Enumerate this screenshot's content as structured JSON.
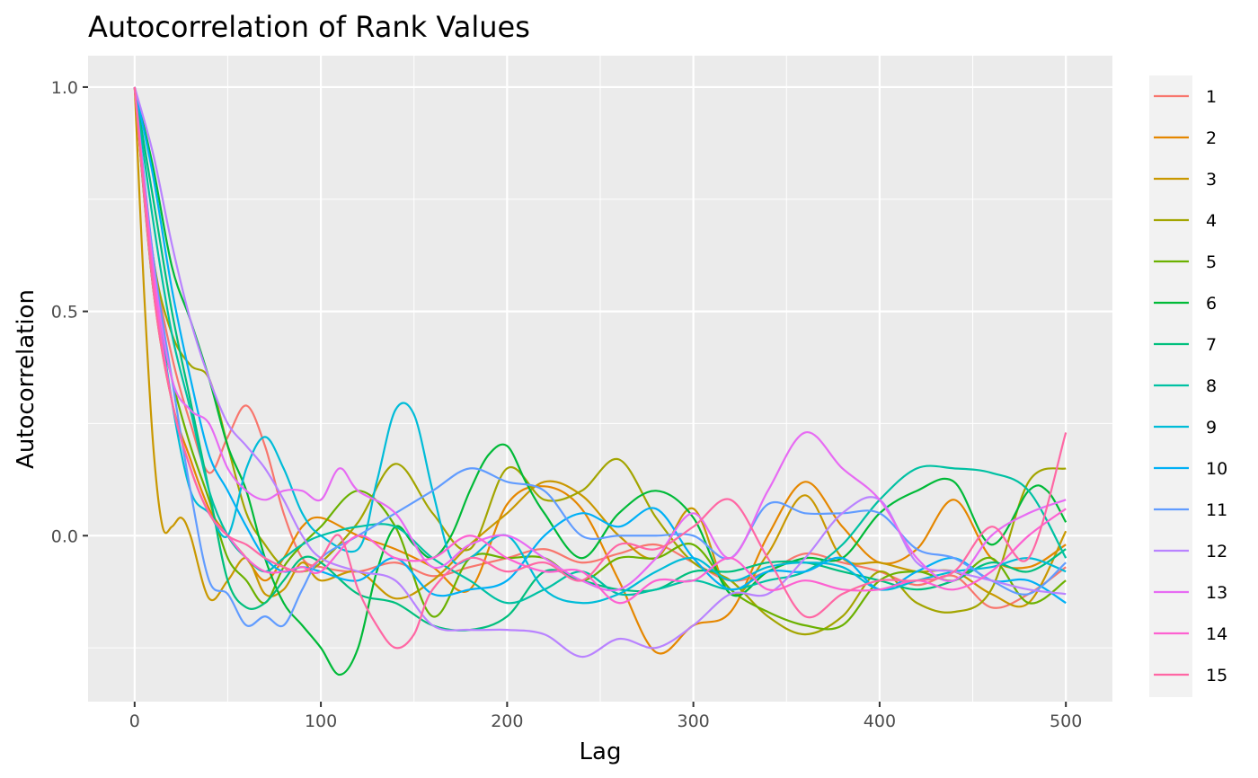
{
  "chart_data": {
    "type": "line",
    "title": "Autocorrelation of Rank Values",
    "xlabel": "Lag",
    "ylabel": "Autocorrelation",
    "xlim": [
      -25,
      525
    ],
    "ylim": [
      -0.37,
      1.07
    ],
    "xticks": [
      0,
      100,
      200,
      300,
      400,
      500
    ],
    "xtick_labels": [
      "0",
      "100",
      "200",
      "300",
      "400",
      "500"
    ],
    "yticks": [
      0.0,
      0.5,
      1.0
    ],
    "ytick_labels": [
      "0.0",
      "0.5",
      "1.0"
    ],
    "grid": true,
    "legend_position": "right",
    "series": [
      {
        "name": "1",
        "color": "#F8766D",
        "x": [
          0,
          10,
          20,
          30,
          40,
          50,
          60,
          70,
          80,
          90,
          100,
          120,
          140,
          160,
          180,
          200,
          220,
          240,
          260,
          280,
          300,
          320,
          340,
          360,
          380,
          400,
          420,
          440,
          460,
          480,
          500
        ],
        "values": [
          1.0,
          0.62,
          0.4,
          0.25,
          0.14,
          0.22,
          0.29,
          0.2,
          0.05,
          -0.05,
          -0.07,
          -0.08,
          -0.06,
          -0.09,
          -0.07,
          -0.05,
          -0.03,
          -0.06,
          -0.04,
          -0.02,
          -0.06,
          -0.1,
          -0.08,
          -0.04,
          -0.06,
          -0.08,
          -0.11,
          -0.09,
          -0.16,
          -0.13,
          -0.07
        ]
      },
      {
        "name": "2",
        "color": "#E58700",
        "x": [
          0,
          10,
          20,
          30,
          40,
          50,
          60,
          70,
          80,
          90,
          100,
          120,
          140,
          160,
          180,
          200,
          220,
          240,
          260,
          280,
          300,
          320,
          340,
          360,
          380,
          400,
          420,
          440,
          460,
          480,
          500
        ],
        "values": [
          1.0,
          0.55,
          0.3,
          0.17,
          0.06,
          0.0,
          -0.05,
          -0.1,
          -0.05,
          0.02,
          0.04,
          0.0,
          -0.03,
          -0.07,
          -0.12,
          0.07,
          0.11,
          0.06,
          -0.1,
          -0.26,
          -0.2,
          -0.17,
          0.0,
          0.12,
          0.02,
          -0.06,
          -0.03,
          0.08,
          -0.05,
          -0.07,
          -0.02
        ]
      },
      {
        "name": "3",
        "color": "#C99800",
        "x": [
          0,
          5,
          10,
          15,
          20,
          25,
          30,
          40,
          50,
          60,
          70,
          80,
          90,
          100,
          120,
          140,
          160,
          180,
          200,
          220,
          240,
          260,
          280,
          300,
          320,
          340,
          360,
          380,
          400,
          420,
          440,
          460,
          480,
          500
        ],
        "values": [
          1.0,
          0.55,
          0.2,
          0.02,
          0.02,
          0.04,
          0.0,
          -0.14,
          -0.1,
          -0.05,
          -0.13,
          -0.12,
          -0.06,
          -0.1,
          -0.08,
          -0.14,
          -0.1,
          -0.02,
          0.05,
          0.12,
          0.09,
          0.0,
          -0.05,
          0.06,
          -0.13,
          -0.04,
          0.09,
          -0.05,
          -0.06,
          -0.08,
          -0.08,
          -0.13,
          -0.15,
          0.01
        ]
      },
      {
        "name": "4",
        "color": "#A3A500",
        "x": [
          0,
          10,
          20,
          30,
          40,
          50,
          60,
          70,
          80,
          90,
          100,
          120,
          140,
          160,
          180,
          200,
          220,
          240,
          260,
          280,
          300,
          320,
          340,
          360,
          380,
          400,
          420,
          440,
          460,
          480,
          500
        ],
        "values": [
          1.0,
          0.62,
          0.45,
          0.38,
          0.35,
          0.2,
          0.05,
          -0.02,
          -0.07,
          -0.08,
          -0.06,
          0.03,
          0.16,
          0.05,
          -0.03,
          0.15,
          0.08,
          0.1,
          0.17,
          0.04,
          -0.06,
          -0.1,
          -0.18,
          -0.22,
          -0.18,
          -0.08,
          -0.15,
          -0.17,
          -0.12,
          0.12,
          0.15
        ]
      },
      {
        "name": "5",
        "color": "#6BB100",
        "x": [
          0,
          10,
          20,
          30,
          40,
          50,
          60,
          70,
          80,
          90,
          100,
          120,
          140,
          160,
          180,
          200,
          220,
          240,
          260,
          280,
          300,
          320,
          340,
          360,
          380,
          400,
          420,
          440,
          460,
          480,
          500
        ],
        "values": [
          1.0,
          0.55,
          0.35,
          0.2,
          0.08,
          -0.05,
          -0.1,
          -0.15,
          -0.07,
          -0.02,
          0.02,
          0.1,
          0.02,
          -0.18,
          -0.05,
          -0.05,
          -0.05,
          -0.1,
          -0.05,
          -0.05,
          -0.02,
          -0.12,
          -0.17,
          -0.2,
          -0.2,
          -0.1,
          -0.08,
          -0.1,
          -0.05,
          -0.15,
          -0.1
        ]
      },
      {
        "name": "6",
        "color": "#00BA38",
        "x": [
          0,
          10,
          20,
          30,
          40,
          50,
          60,
          70,
          80,
          90,
          100,
          110,
          120,
          130,
          140,
          150,
          160,
          170,
          180,
          190,
          200,
          210,
          220,
          240,
          260,
          280,
          300,
          320,
          340,
          360,
          380,
          400,
          420,
          440,
          460,
          480,
          490,
          500
        ],
        "values": [
          1.0,
          0.82,
          0.6,
          0.48,
          0.35,
          0.2,
          0.1,
          -0.05,
          -0.15,
          -0.2,
          -0.25,
          -0.31,
          -0.25,
          -0.08,
          0.02,
          -0.02,
          -0.05,
          0.0,
          0.1,
          0.18,
          0.2,
          0.12,
          0.05,
          -0.05,
          0.05,
          0.1,
          0.04,
          -0.13,
          -0.08,
          -0.05,
          -0.05,
          0.05,
          0.1,
          0.12,
          -0.02,
          0.1,
          0.1,
          0.03
        ]
      },
      {
        "name": "7",
        "color": "#00BF7D",
        "x": [
          0,
          10,
          20,
          30,
          40,
          50,
          60,
          70,
          80,
          90,
          100,
          120,
          140,
          160,
          180,
          200,
          220,
          240,
          260,
          280,
          300,
          320,
          340,
          360,
          380,
          400,
          420,
          440,
          460,
          480,
          500
        ],
        "values": [
          1.0,
          0.75,
          0.5,
          0.3,
          0.1,
          -0.1,
          -0.16,
          -0.15,
          -0.1,
          -0.05,
          -0.06,
          -0.13,
          -0.15,
          -0.2,
          -0.21,
          -0.18,
          -0.08,
          -0.1,
          -0.12,
          -0.12,
          -0.08,
          -0.08,
          -0.06,
          -0.06,
          -0.08,
          -0.1,
          -0.12,
          -0.1,
          -0.06,
          -0.08,
          -0.03
        ]
      },
      {
        "name": "8",
        "color": "#00C1A3",
        "x": [
          0,
          10,
          20,
          30,
          40,
          50,
          60,
          70,
          80,
          90,
          100,
          120,
          140,
          160,
          180,
          200,
          220,
          240,
          260,
          280,
          300,
          320,
          340,
          360,
          380,
          400,
          420,
          440,
          460,
          480,
          500
        ],
        "values": [
          1.0,
          0.7,
          0.45,
          0.28,
          0.1,
          0.0,
          -0.05,
          -0.08,
          -0.05,
          -0.02,
          0.0,
          0.02,
          0.02,
          -0.05,
          -0.1,
          -0.15,
          -0.12,
          -0.08,
          -0.13,
          -0.12,
          -0.1,
          -0.12,
          -0.1,
          -0.08,
          -0.02,
          0.08,
          0.15,
          0.15,
          0.14,
          0.1,
          -0.05
        ]
      },
      {
        "name": "9",
        "color": "#00BCD8",
        "x": [
          0,
          10,
          20,
          30,
          40,
          50,
          60,
          70,
          80,
          90,
          100,
          120,
          130,
          140,
          150,
          160,
          170,
          180,
          200,
          220,
          240,
          260,
          280,
          300,
          320,
          340,
          360,
          380,
          400,
          420,
          440,
          460,
          480,
          500
        ],
        "values": [
          1.0,
          0.6,
          0.3,
          0.1,
          0.05,
          0.0,
          0.15,
          0.22,
          0.15,
          0.05,
          0.0,
          -0.03,
          0.12,
          0.28,
          0.27,
          0.1,
          -0.05,
          -0.05,
          0.0,
          -0.12,
          -0.15,
          -0.13,
          -0.08,
          -0.05,
          -0.1,
          -0.07,
          -0.06,
          -0.07,
          -0.12,
          -0.1,
          -0.08,
          -0.07,
          -0.05,
          -0.08
        ]
      },
      {
        "name": "10",
        "color": "#00B0F6",
        "x": [
          0,
          10,
          20,
          30,
          40,
          50,
          60,
          70,
          80,
          90,
          100,
          120,
          140,
          160,
          180,
          200,
          220,
          240,
          260,
          280,
          300,
          320,
          340,
          360,
          380,
          400,
          420,
          440,
          460,
          480,
          500
        ],
        "values": [
          1.0,
          0.8,
          0.55,
          0.35,
          0.18,
          0.1,
          0.02,
          -0.05,
          -0.08,
          -0.07,
          -0.08,
          -0.1,
          -0.05,
          -0.13,
          -0.12,
          -0.1,
          0.0,
          0.05,
          0.02,
          0.06,
          -0.05,
          -0.12,
          -0.08,
          -0.08,
          -0.05,
          -0.12,
          -0.08,
          -0.05,
          -0.1,
          -0.1,
          -0.15
        ]
      },
      {
        "name": "11",
        "color": "#619CFF",
        "x": [
          0,
          10,
          20,
          30,
          40,
          50,
          60,
          70,
          80,
          90,
          100,
          120,
          140,
          160,
          180,
          200,
          220,
          240,
          260,
          280,
          300,
          320,
          340,
          360,
          380,
          400,
          420,
          440,
          460,
          480,
          500
        ],
        "values": [
          1.0,
          0.62,
          0.35,
          0.1,
          -0.1,
          -0.13,
          -0.2,
          -0.18,
          -0.2,
          -0.12,
          -0.05,
          0.0,
          0.05,
          0.1,
          0.15,
          0.12,
          0.1,
          0.0,
          0.0,
          0.0,
          0.0,
          -0.05,
          0.07,
          0.05,
          0.05,
          0.05,
          -0.03,
          -0.05,
          -0.1,
          -0.13,
          -0.06
        ]
      },
      {
        "name": "12",
        "color": "#B983FF",
        "x": [
          0,
          10,
          20,
          30,
          40,
          50,
          60,
          70,
          80,
          90,
          100,
          120,
          140,
          160,
          180,
          200,
          220,
          240,
          260,
          280,
          300,
          320,
          340,
          360,
          380,
          400,
          420,
          440,
          460,
          480,
          500
        ],
        "values": [
          1.0,
          0.85,
          0.65,
          0.48,
          0.35,
          0.25,
          0.2,
          0.15,
          0.08,
          0.0,
          -0.05,
          -0.08,
          -0.1,
          -0.2,
          -0.21,
          -0.21,
          -0.22,
          -0.27,
          -0.23,
          -0.25,
          -0.2,
          -0.13,
          -0.13,
          -0.05,
          0.05,
          0.08,
          -0.06,
          -0.08,
          -0.1,
          -0.12,
          -0.13
        ]
      },
      {
        "name": "13",
        "color": "#E76BF3",
        "x": [
          0,
          10,
          20,
          30,
          40,
          50,
          60,
          70,
          80,
          90,
          100,
          110,
          120,
          140,
          160,
          180,
          200,
          220,
          240,
          260,
          280,
          300,
          320,
          340,
          360,
          380,
          400,
          420,
          440,
          460,
          480,
          500
        ],
        "values": [
          1.0,
          0.6,
          0.35,
          0.28,
          0.25,
          0.15,
          0.1,
          0.08,
          0.1,
          0.1,
          0.08,
          0.15,
          0.1,
          0.05,
          -0.07,
          -0.02,
          0.0,
          -0.05,
          -0.1,
          -0.12,
          -0.05,
          0.05,
          -0.05,
          0.1,
          0.23,
          0.15,
          0.08,
          -0.05,
          -0.1,
          0.0,
          0.05,
          0.08
        ]
      },
      {
        "name": "14",
        "color": "#FD61D1",
        "x": [
          0,
          10,
          20,
          30,
          40,
          50,
          60,
          70,
          80,
          90,
          100,
          120,
          140,
          160,
          180,
          200,
          220,
          240,
          260,
          280,
          300,
          320,
          340,
          360,
          380,
          400,
          420,
          440,
          460,
          480,
          500
        ],
        "values": [
          1.0,
          0.58,
          0.3,
          0.15,
          0.05,
          0.0,
          -0.05,
          -0.08,
          -0.08,
          -0.07,
          -0.08,
          0.0,
          -0.05,
          -0.05,
          0.0,
          -0.05,
          -0.08,
          -0.08,
          -0.15,
          -0.1,
          -0.1,
          -0.05,
          -0.12,
          -0.1,
          -0.12,
          -0.12,
          -0.1,
          -0.12,
          -0.08,
          0.0,
          0.06
        ]
      },
      {
        "name": "15",
        "color": "#FF67A4",
        "x": [
          0,
          10,
          20,
          30,
          40,
          50,
          60,
          70,
          80,
          90,
          100,
          110,
          120,
          130,
          140,
          150,
          160,
          180,
          200,
          220,
          240,
          260,
          280,
          300,
          320,
          340,
          360,
          380,
          400,
          420,
          440,
          460,
          480,
          500
        ],
        "values": [
          1.0,
          0.55,
          0.3,
          0.15,
          0.05,
          0.0,
          -0.02,
          -0.05,
          -0.07,
          -0.08,
          -0.05,
          0.0,
          -0.12,
          -0.2,
          -0.25,
          -0.22,
          -0.12,
          -0.05,
          -0.08,
          -0.06,
          -0.1,
          -0.02,
          -0.03,
          0.02,
          0.08,
          -0.05,
          -0.18,
          -0.13,
          -0.1,
          -0.1,
          -0.08,
          0.02,
          -0.05,
          0.23
        ]
      }
    ]
  }
}
